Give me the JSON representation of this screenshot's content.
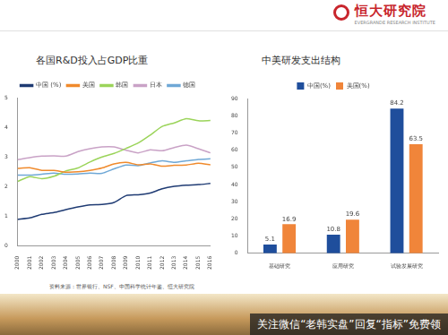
{
  "header": {
    "logo": "恒大研究院",
    "logo_subtitle": "EVERGRANDE RESEARCH INSTITUTE"
  },
  "chart_data": [
    {
      "type": "line",
      "title": "各国R&D投入占GDP比重",
      "categories": [
        "2000",
        "2001",
        "2002",
        "2003",
        "2004",
        "2005",
        "2006",
        "2007",
        "2008",
        "2009",
        "2010",
        "2011",
        "2012",
        "2013",
        "2014",
        "2015",
        "2016"
      ],
      "series": [
        {
          "name": "中国 (%)",
          "color": "#1f3b73",
          "values": [
            0.9,
            0.95,
            1.07,
            1.13,
            1.23,
            1.32,
            1.39,
            1.4,
            1.47,
            1.7,
            1.73,
            1.79,
            1.93,
            2.01,
            2.05,
            2.07,
            2.11
          ]
        },
        {
          "name": "美国",
          "color": "#f08a2c",
          "values": [
            2.62,
            2.64,
            2.55,
            2.55,
            2.49,
            2.5,
            2.55,
            2.63,
            2.77,
            2.82,
            2.74,
            2.77,
            2.69,
            2.72,
            2.73,
            2.79,
            2.74
          ]
        },
        {
          "name": "韩国",
          "color": "#9bd45a",
          "values": [
            2.18,
            2.34,
            2.27,
            2.35,
            2.53,
            2.63,
            2.83,
            3.0,
            3.12,
            3.29,
            3.47,
            3.74,
            4.03,
            4.15,
            4.29,
            4.22,
            4.23
          ]
        },
        {
          "name": "日本",
          "color": "#c9a2c6",
          "values": [
            2.91,
            2.98,
            3.03,
            3.04,
            3.03,
            3.18,
            3.28,
            3.34,
            3.34,
            3.23,
            3.14,
            3.24,
            3.21,
            3.32,
            3.4,
            3.28,
            3.14
          ]
        },
        {
          "name": "德国",
          "color": "#6fa8d6",
          "values": [
            2.39,
            2.39,
            2.42,
            2.46,
            2.42,
            2.43,
            2.46,
            2.45,
            2.6,
            2.73,
            2.71,
            2.8,
            2.87,
            2.82,
            2.87,
            2.92,
            2.94
          ]
        }
      ],
      "ylim": [
        0,
        5
      ],
      "yticks": [
        0,
        1,
        2,
        3,
        4,
        5
      ],
      "grid": false,
      "legend": "top"
    },
    {
      "type": "bar",
      "title": "中美研发支出结构",
      "categories": [
        "基础研究",
        "应用研究",
        "试验发展研究"
      ],
      "series": [
        {
          "name": "中国(%)",
          "color": "#1f4e9c",
          "values": [
            5.1,
            10.8,
            84.2
          ]
        },
        {
          "name": "美国(%)",
          "color": "#f0853a",
          "values": [
            16.9,
            19.6,
            63.5
          ]
        }
      ],
      "ylim": [
        0,
        90
      ],
      "yticks": [
        0,
        10,
        20,
        30,
        40,
        50,
        60,
        70,
        80,
        90
      ],
      "grid": false,
      "legend": "top",
      "data_labels": true
    }
  ],
  "source": "资料来源：世界银行、NSF、中国科学统计年鉴、恒大研究院",
  "watermark": "关注微信“老韩实盘”回复“指标”免费领"
}
